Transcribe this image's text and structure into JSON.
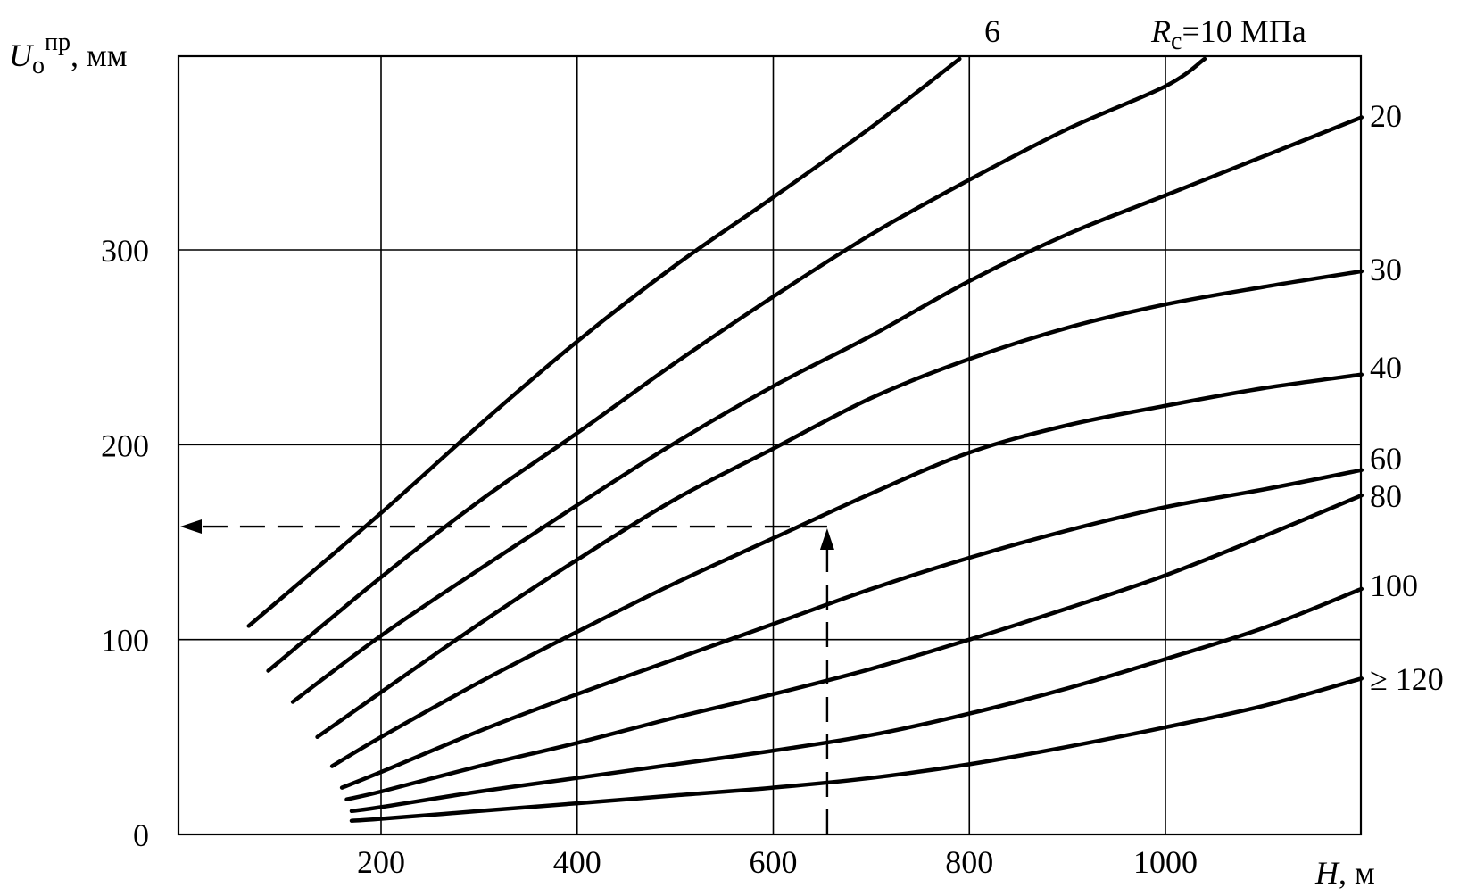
{
  "chart_data": {
    "type": "line",
    "title": "",
    "xlabel": {
      "symbol": "H",
      "unit": ", м"
    },
    "ylabel": {
      "symbol": "U",
      "sub": "о",
      "sup": "пр",
      "unit": ", мм"
    },
    "xlim": [
      0,
      1200
    ],
    "ylim": [
      0,
      400
    ],
    "x_ticks": [
      200,
      400,
      600,
      800,
      1000
    ],
    "x_tick_labels": [
      "200",
      "400",
      "600",
      "800",
      "1000"
    ],
    "y_ticks": [
      0,
      100,
      200,
      300
    ],
    "y_tick_labels": [
      "0",
      "100",
      "200",
      "300"
    ],
    "grid": true,
    "series": [
      {
        "name": "6",
        "points": [
          [
            65,
            107
          ],
          [
            200,
            165
          ],
          [
            300,
            210
          ],
          [
            400,
            253
          ],
          [
            500,
            292
          ],
          [
            600,
            327
          ],
          [
            700,
            363
          ],
          [
            790,
            398
          ]
        ]
      },
      {
        "name": "R_c=10 МПа",
        "points": [
          [
            85,
            84
          ],
          [
            200,
            132
          ],
          [
            300,
            171
          ],
          [
            400,
            206
          ],
          [
            500,
            242
          ],
          [
            600,
            276
          ],
          [
            700,
            308
          ],
          [
            800,
            336
          ],
          [
            900,
            362
          ],
          [
            1000,
            384
          ],
          [
            1040,
            398
          ]
        ]
      },
      {
        "name": "20",
        "points": [
          [
            110,
            68
          ],
          [
            200,
            102
          ],
          [
            300,
            136
          ],
          [
            400,
            169
          ],
          [
            500,
            201
          ],
          [
            600,
            230
          ],
          [
            700,
            256
          ],
          [
            800,
            284
          ],
          [
            900,
            308
          ],
          [
            1000,
            328
          ],
          [
            1100,
            348
          ],
          [
            1200,
            368
          ]
        ]
      },
      {
        "name": "30",
        "points": [
          [
            135,
            50
          ],
          [
            200,
            73
          ],
          [
            300,
            108
          ],
          [
            400,
            141
          ],
          [
            500,
            172
          ],
          [
            600,
            198
          ],
          [
            700,
            224
          ],
          [
            800,
            244
          ],
          [
            900,
            260
          ],
          [
            1000,
            272
          ],
          [
            1100,
            281
          ],
          [
            1200,
            289
          ]
        ]
      },
      {
        "name": "40",
        "points": [
          [
            150,
            35
          ],
          [
            200,
            50
          ],
          [
            300,
            78
          ],
          [
            400,
            104
          ],
          [
            500,
            129
          ],
          [
            600,
            152
          ],
          [
            700,
            175
          ],
          [
            800,
            196
          ],
          [
            900,
            210
          ],
          [
            1000,
            220
          ],
          [
            1100,
            229
          ],
          [
            1200,
            236
          ]
        ]
      },
      {
        "name": "60",
        "points": [
          [
            160,
            24
          ],
          [
            200,
            32
          ],
          [
            300,
            53
          ],
          [
            400,
            72
          ],
          [
            500,
            90
          ],
          [
            600,
            108
          ],
          [
            700,
            126
          ],
          [
            800,
            142
          ],
          [
            900,
            156
          ],
          [
            1000,
            168
          ],
          [
            1100,
            177
          ],
          [
            1200,
            187
          ]
        ]
      },
      {
        "name": "80",
        "points": [
          [
            165,
            18
          ],
          [
            200,
            22
          ],
          [
            300,
            35
          ],
          [
            400,
            47
          ],
          [
            500,
            60
          ],
          [
            600,
            72
          ],
          [
            700,
            85
          ],
          [
            800,
            100
          ],
          [
            900,
            116
          ],
          [
            1000,
            133
          ],
          [
            1100,
            153
          ],
          [
            1200,
            174
          ]
        ]
      },
      {
        "name": "100",
        "points": [
          [
            170,
            12
          ],
          [
            200,
            14
          ],
          [
            300,
            22
          ],
          [
            400,
            29
          ],
          [
            500,
            36
          ],
          [
            600,
            43
          ],
          [
            700,
            51
          ],
          [
            800,
            62
          ],
          [
            900,
            75
          ],
          [
            1000,
            90
          ],
          [
            1100,
            106
          ],
          [
            1200,
            126
          ]
        ]
      },
      {
        "name": "≥ 120",
        "points": [
          [
            170,
            7
          ],
          [
            200,
            8
          ],
          [
            300,
            12
          ],
          [
            400,
            16
          ],
          [
            500,
            20
          ],
          [
            600,
            24
          ],
          [
            700,
            29
          ],
          [
            800,
            36
          ],
          [
            900,
            45
          ],
          [
            1000,
            55
          ],
          [
            1100,
            66
          ],
          [
            1200,
            80
          ]
        ]
      }
    ],
    "series_labels": [
      "6",
      "20",
      "30",
      "40",
      "60",
      "80",
      "100",
      "≥ 120"
    ],
    "top_label": {
      "symbol": "R",
      "sub": "с",
      "text": "=10 МПа"
    },
    "annotation": {
      "x": 655,
      "y": 158
    }
  }
}
